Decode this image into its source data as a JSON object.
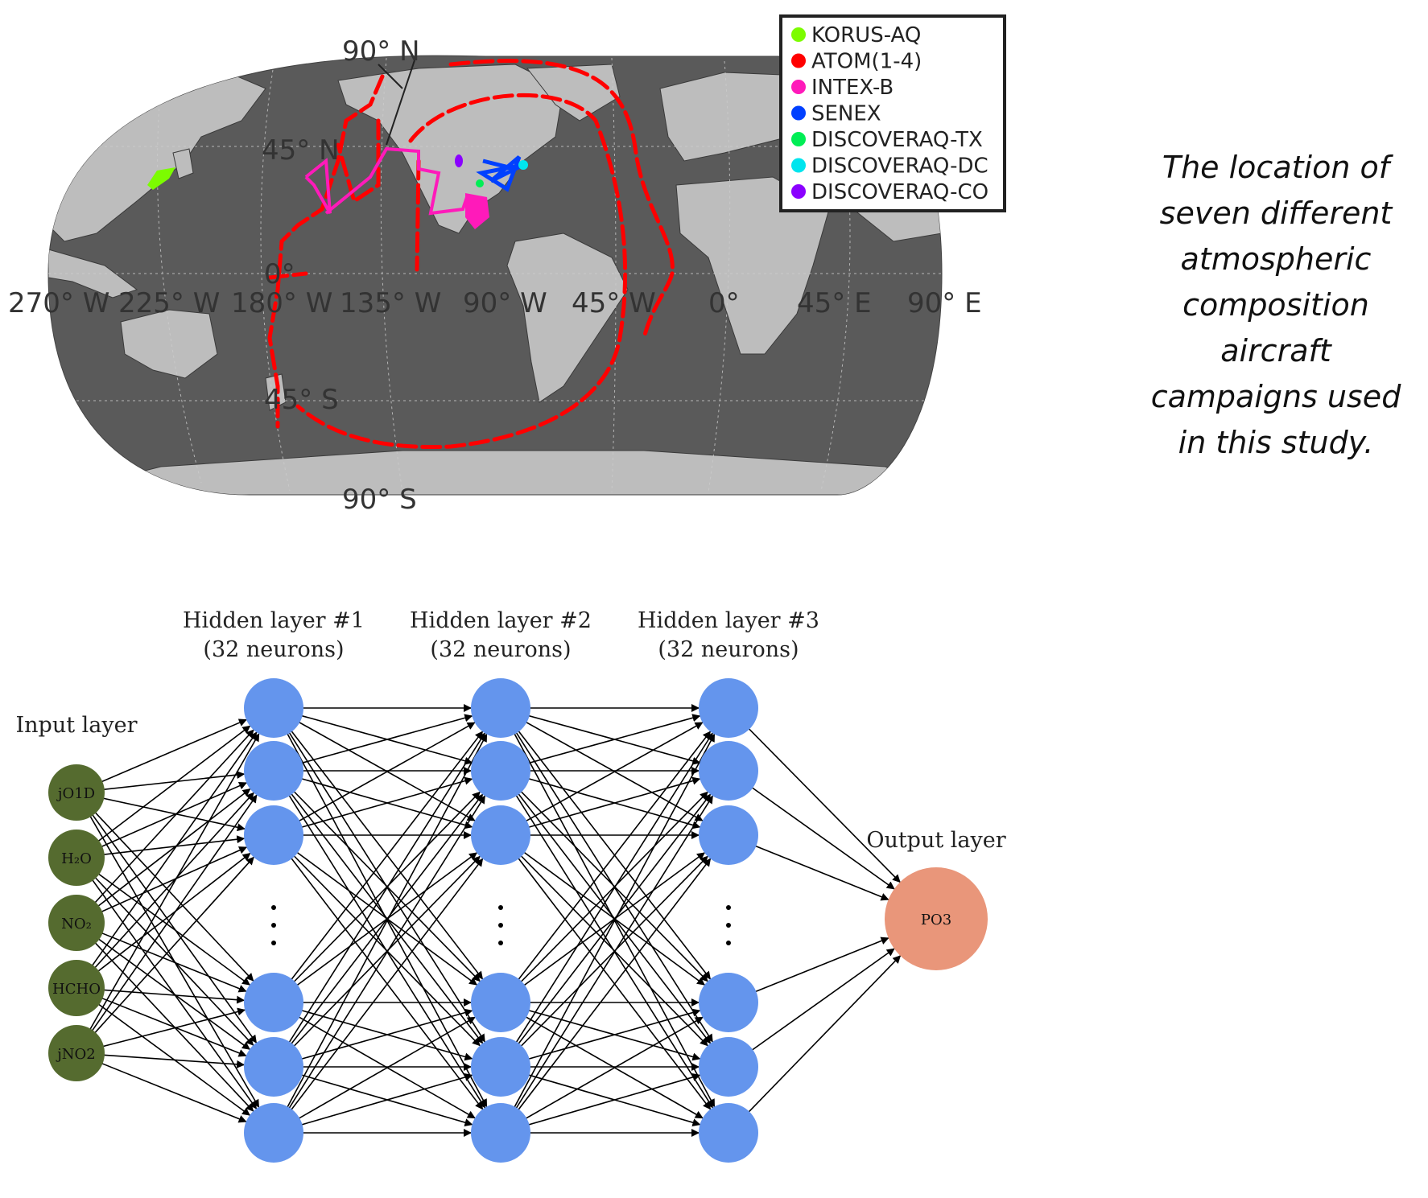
{
  "map": {
    "lat_labels": {
      "n90": "90° N",
      "n45": "45° N",
      "eq": "0°",
      "s45": "45° S",
      "s90": "90° S"
    },
    "lon_labels": [
      "270° W",
      "225° W",
      "180° W",
      "135° W",
      "90° W",
      "45° W",
      "0°",
      "45° E",
      "90° E"
    ],
    "legend": [
      {
        "label": "KORUS-AQ",
        "color": "#7cfc00"
      },
      {
        "label": "ATOM(1-4)",
        "color": "#ff0000"
      },
      {
        "label": "INTEX-B",
        "color": "#ff1aba"
      },
      {
        "label": "SENEX",
        "color": "#0040ff"
      },
      {
        "label": "DISCOVERAQ-TX",
        "color": "#00ee55"
      },
      {
        "label": "DISCOVERAQ-DC",
        "color": "#00e5ee"
      },
      {
        "label": "DISCOVERAQ-CO",
        "color": "#8a00ff"
      }
    ]
  },
  "caption": {
    "lines": [
      "The location of",
      "seven different",
      "atmospheric",
      "composition",
      "aircraft",
      "campaigns used",
      "in this study."
    ]
  },
  "network": {
    "input_title": "Input layer",
    "inputs": [
      "jO1D",
      "H₂O",
      "NO₂",
      "HCHO",
      "jNO2"
    ],
    "hidden": [
      {
        "title": "Hidden layer #1",
        "subtitle": "(32 neurons)"
      },
      {
        "title": "Hidden layer #2",
        "subtitle": "(32 neurons)"
      },
      {
        "title": "Hidden layer #3",
        "subtitle": "(32 neurons)"
      }
    ],
    "output_title": "Output layer",
    "output": "PO3",
    "colors": {
      "input": "#556b2f",
      "hidden": "#6495ed",
      "output": "#e9967a"
    }
  }
}
